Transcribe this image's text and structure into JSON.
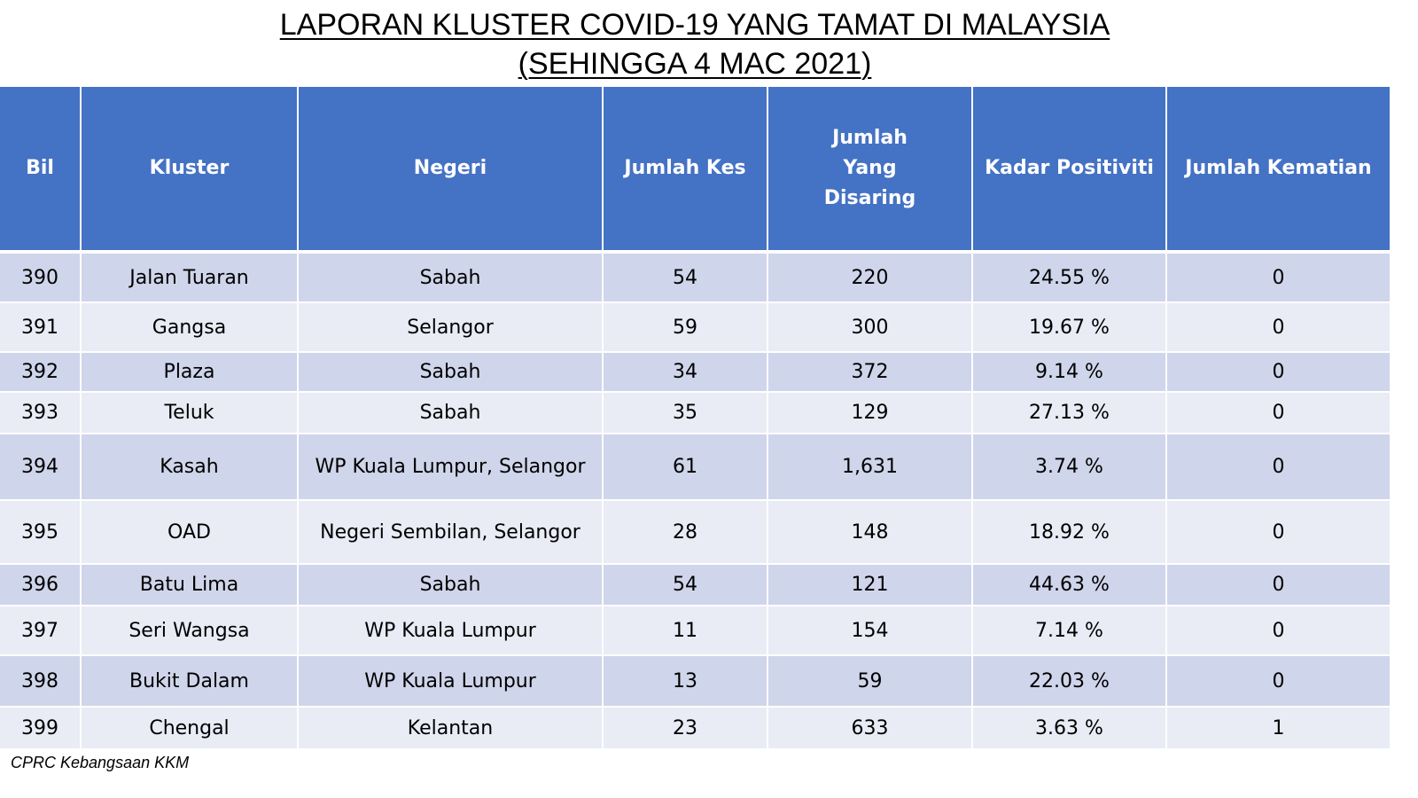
{
  "title": {
    "line1": "LAPORAN KLUSTER COVID-19 YANG TAMAT DI MALAYSIA",
    "line2": "(SEHINGGA 4 MAC 2021)"
  },
  "table": {
    "headers": [
      "Bil",
      "Kluster",
      "Negeri",
      "Jumlah Kes",
      "Jumlah Yang Disaring",
      "Kadar Positiviti",
      "Jumlah Kematian"
    ],
    "rows": [
      [
        "390",
        "Jalan Tuaran",
        "Sabah",
        "54",
        "220",
        "24.55 %",
        "0"
      ],
      [
        "391",
        "Gangsa",
        "Selangor",
        "59",
        "300",
        "19.67 %",
        "0"
      ],
      [
        "392",
        "Plaza",
        "Sabah",
        "34",
        "372",
        "9.14 %",
        "0"
      ],
      [
        "393",
        "Teluk",
        "Sabah",
        "35",
        "129",
        "27.13 %",
        "0"
      ],
      [
        "394",
        "Kasah",
        "WP Kuala Lumpur, Selangor",
        "61",
        "1,631",
        "3.74 %",
        "0"
      ],
      [
        "395",
        "OAD",
        "Negeri Sembilan, Selangor",
        "28",
        "148",
        "18.92 %",
        "0"
      ],
      [
        "396",
        "Batu Lima",
        "Sabah",
        "54",
        "121",
        "44.63 %",
        "0"
      ],
      [
        "397",
        "Seri Wangsa",
        "WP Kuala Lumpur",
        "11",
        "154",
        "7.14 %",
        "0"
      ],
      [
        "398",
        "Bukit Dalam",
        "WP Kuala Lumpur",
        "13",
        "59",
        "22.03 %",
        "0"
      ],
      [
        "399",
        "Chengal",
        "Kelantan",
        "23",
        "633",
        "3.63 %",
        "1"
      ]
    ]
  },
  "footer": "CPRC Kebangsaan KKM",
  "colors": {
    "header_bg": "#4472c4",
    "row_dark": "#cfd5ea",
    "row_light": "#e9ebf5"
  }
}
